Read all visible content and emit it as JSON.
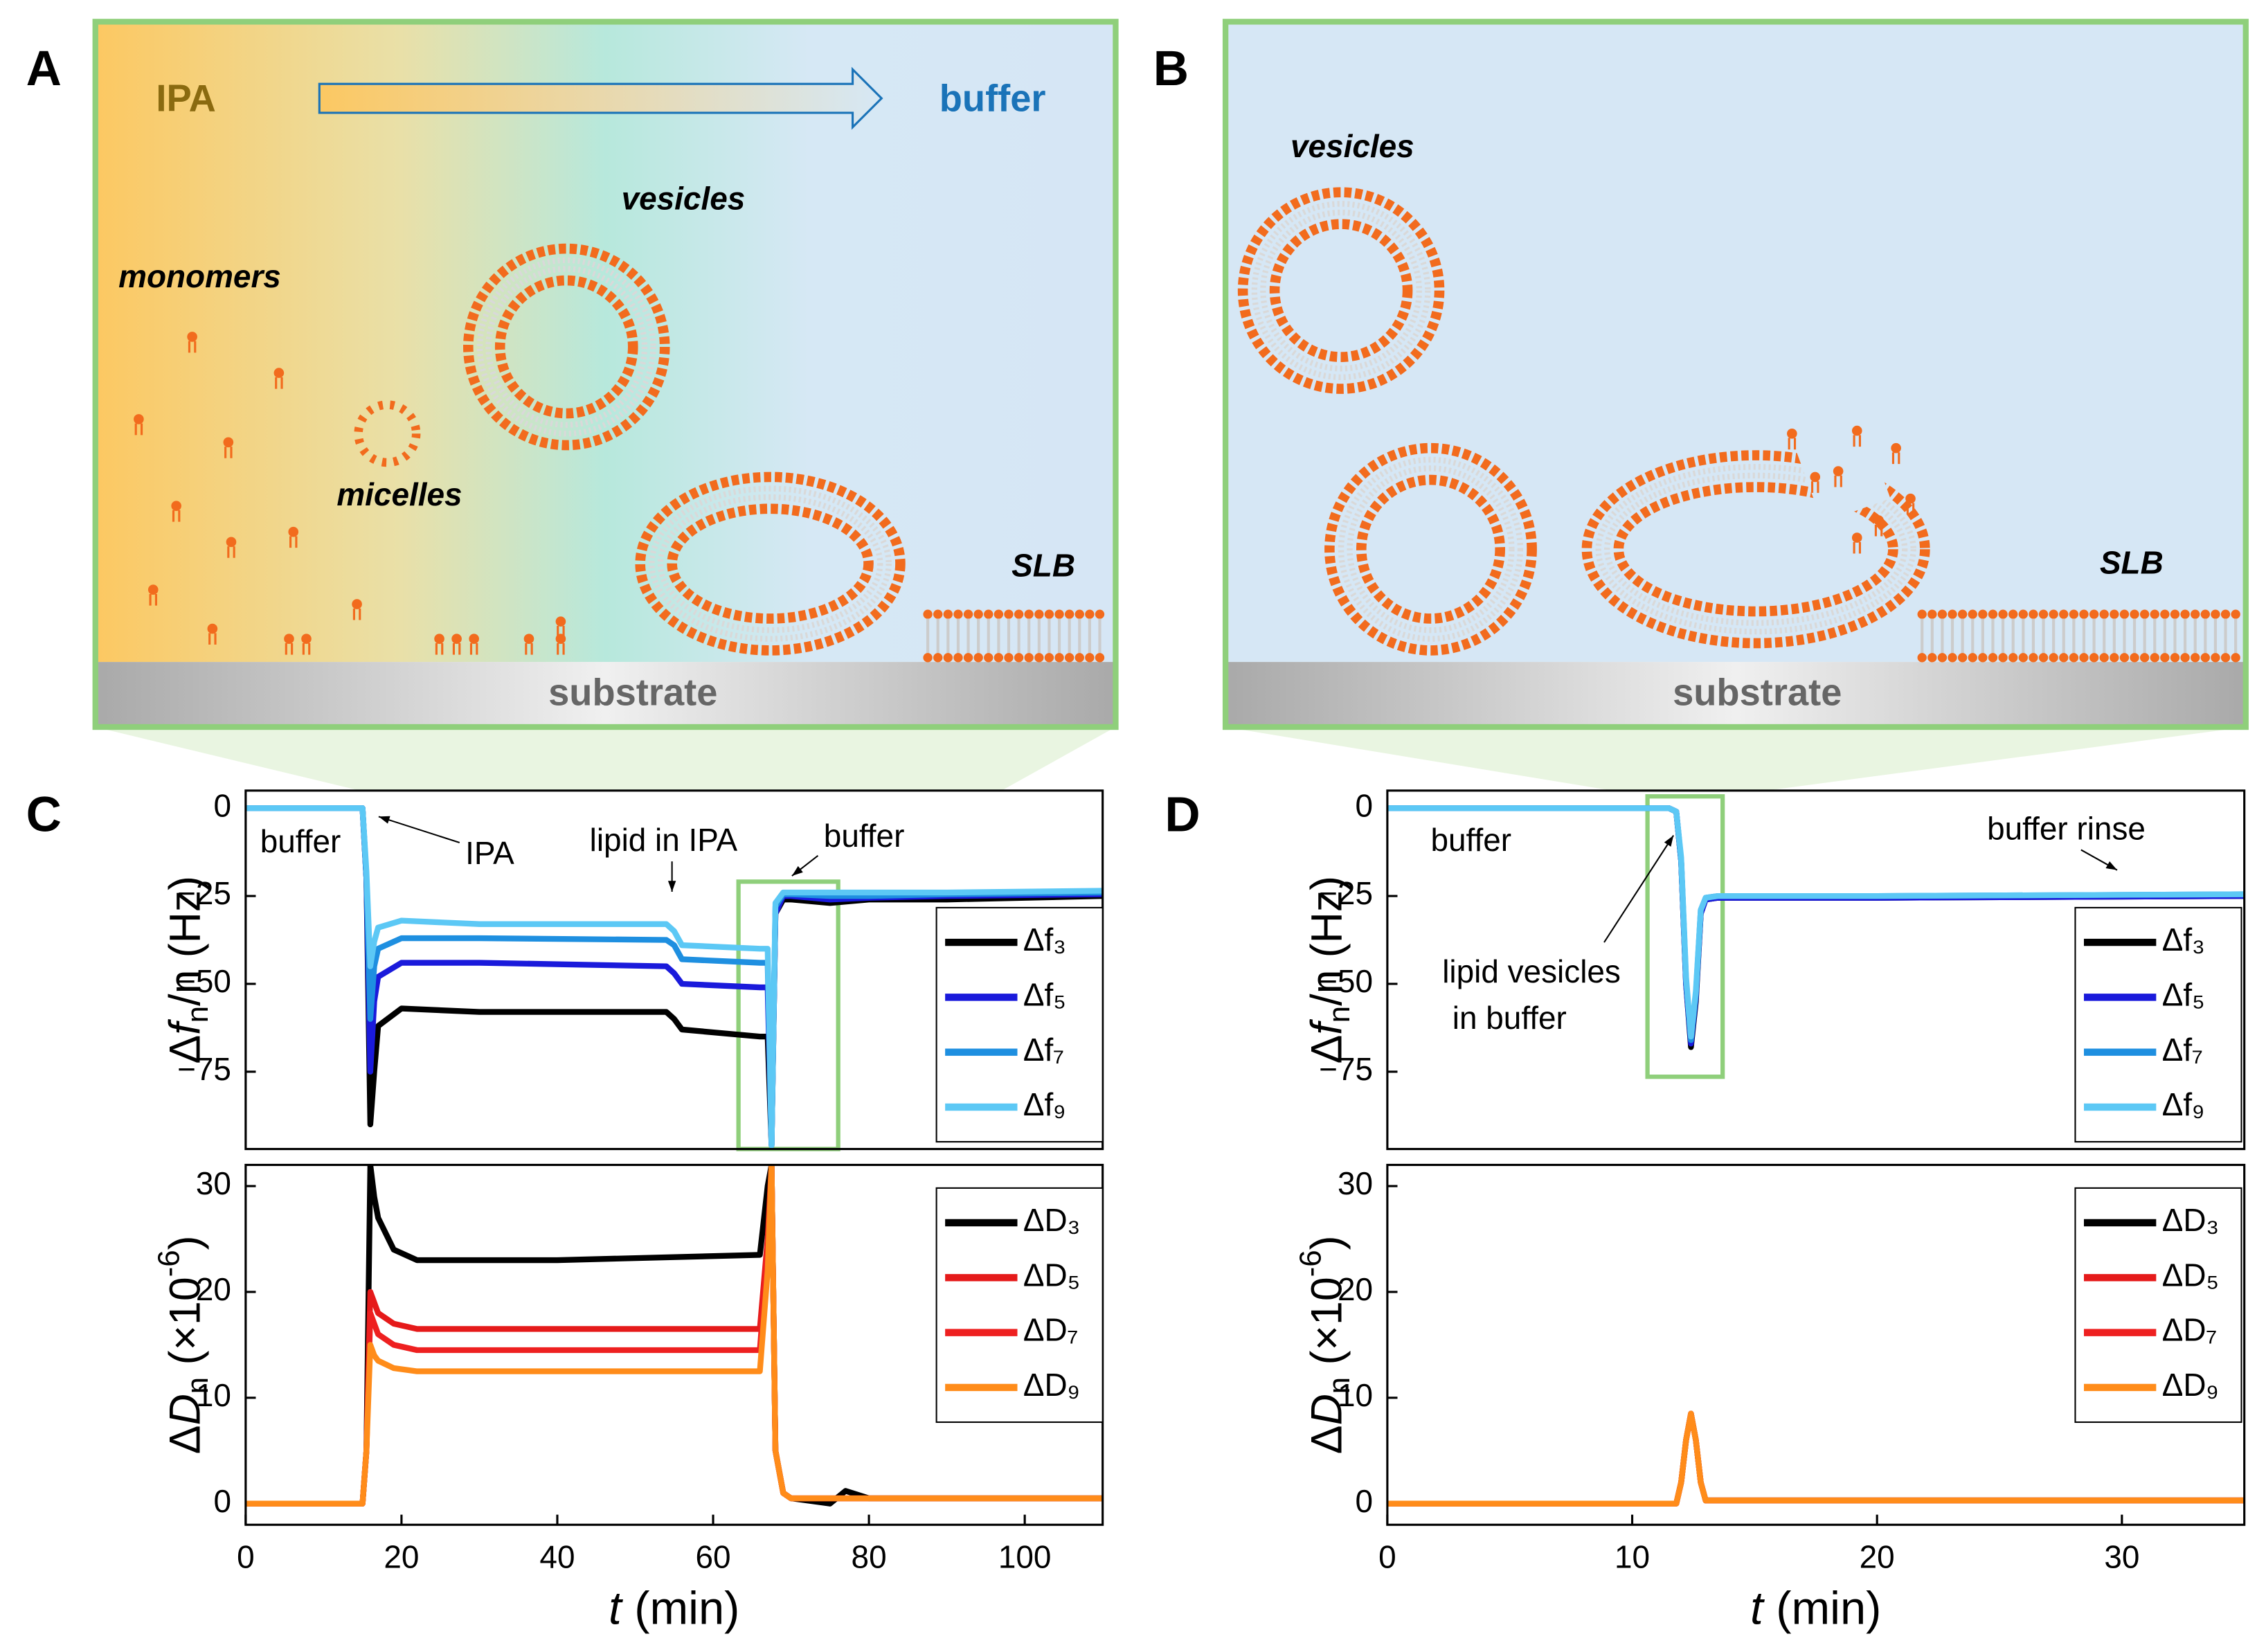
{
  "panel_labels": [
    "A",
    "B",
    "C",
    "D"
  ],
  "panel_a": {
    "left": "IPA",
    "right": "buffer",
    "vesicles": "vesicles",
    "monomers": "monomers",
    "micelles": "micelles",
    "slb": "SLB",
    "substrate": "substrate"
  },
  "panel_b": {
    "vesicles": "vesicles",
    "slb": "SLB",
    "substrate": "substrate"
  },
  "chart_data": [
    {
      "type": "line",
      "ylabel": {
        "pre": "Δ",
        "var": "f",
        "sub": "n",
        "post": "/n (Hz)"
      },
      "xlim": [
        0,
        110
      ],
      "ylim": [
        -97,
        5
      ],
      "yticks": [
        0,
        {
          "value": -25,
          "label": "−25"
        },
        {
          "value": -50,
          "label": "−50"
        },
        {
          "value": -75,
          "label": "−75"
        }
      ],
      "annotations": [
        "buffer",
        "IPA",
        "lipid in IPA",
        "buffer"
      ],
      "x": [
        0,
        15,
        15.5,
        16,
        16.5,
        17,
        20,
        30,
        54,
        55,
        56,
        66,
        67,
        67.5,
        68,
        69,
        70,
        75,
        80,
        90,
        110
      ],
      "series": [
        {
          "name": "Δf₃",
          "color": "#000000",
          "values": [
            0,
            0,
            -20,
            -90,
            -75,
            -62,
            -57,
            -58,
            -58,
            -60,
            -63,
            -65,
            -65,
            -96,
            -30,
            -26,
            -26,
            -27,
            -26,
            -26,
            -25
          ]
        },
        {
          "name": "Δf₅",
          "color": "#1a1adb",
          "values": [
            0,
            0,
            -20,
            -75,
            -55,
            -48,
            -44,
            -44,
            -45,
            -47,
            -50,
            -51,
            -51,
            -96,
            -30,
            -25,
            -25,
            -26,
            -25.5,
            -25,
            -24.5
          ]
        },
        {
          "name": "Δf₇",
          "color": "#1e8fe0",
          "values": [
            0,
            0,
            -20,
            -60,
            -45,
            -40,
            -37,
            -37,
            -37.5,
            -39,
            -43,
            -44,
            -44,
            -96,
            -28,
            -24.5,
            -24.5,
            -25,
            -25,
            -24.5,
            -24
          ]
        },
        {
          "name": "Δf₉",
          "color": "#5cc8f5",
          "values": [
            0,
            0,
            -18,
            -45,
            -38,
            -34,
            -32,
            -33,
            -33,
            -35,
            -39,
            -40,
            -40,
            -96,
            -27,
            -24,
            -24,
            -24,
            -24,
            -24,
            -23.5
          ]
        }
      ]
    },
    {
      "type": "line",
      "ylabel": {
        "pre": "Δ",
        "var": "D",
        "sub": "n",
        "post": " (×10",
        "sup": "-6",
        "end": ")"
      },
      "xlabel": {
        "var": "t",
        "post": " (min)"
      },
      "xlim": [
        0,
        110
      ],
      "ylim": [
        -2,
        32
      ],
      "xticks": [
        0,
        20,
        40,
        60,
        80,
        100
      ],
      "yticks": [
        0,
        10,
        20,
        30
      ],
      "x": [
        0,
        15,
        15.5,
        16,
        16.5,
        17,
        19,
        22,
        40,
        66,
        67,
        67.5,
        68,
        69,
        70,
        75,
        77,
        80,
        110
      ],
      "series": [
        {
          "name": "ΔD₃",
          "color": "#000000",
          "values": [
            0,
            0,
            5,
            32,
            29,
            27,
            24,
            23,
            23,
            23.5,
            30,
            32,
            5,
            1,
            0.5,
            0,
            1.2,
            0.5,
            0.5
          ]
        },
        {
          "name": "ΔD₅",
          "color": "#e51a1a",
          "values": [
            0,
            0,
            5,
            20,
            19,
            18,
            17,
            16.5,
            16.5,
            16.5,
            25,
            32,
            5,
            1,
            0.5,
            0.5,
            0.5,
            0.5,
            0.5
          ]
        },
        {
          "name": "ΔD₇",
          "color": "#ee2020",
          "values": [
            0,
            0,
            5,
            18,
            17,
            16,
            15,
            14.5,
            14.5,
            14.5,
            24,
            32,
            5,
            1,
            0.5,
            0.5,
            0.5,
            0.5,
            0.5
          ]
        },
        {
          "name": "ΔD₉",
          "color": "#ff8c1a",
          "values": [
            0,
            0,
            5,
            15,
            14,
            13.5,
            12.8,
            12.5,
            12.5,
            12.5,
            22,
            32,
            5,
            1,
            0.5,
            0.5,
            0.5,
            0.5,
            0.5
          ]
        }
      ]
    },
    {
      "type": "line",
      "ylabel": {
        "pre": "Δ",
        "var": "f",
        "sub": "n",
        "post": "/n (Hz)"
      },
      "xlim": [
        0,
        35
      ],
      "ylim": [
        -97,
        5
      ],
      "yticks": [
        0,
        {
          "value": -25,
          "label": "−25"
        },
        {
          "value": -50,
          "label": "−50"
        },
        {
          "value": -75,
          "label": "−75"
        }
      ],
      "annotations": [
        "buffer",
        "buffer rinse",
        "lipid vesicles",
        "in buffer"
      ],
      "x": [
        0,
        11.5,
        11.8,
        12,
        12.2,
        12.4,
        12.6,
        12.8,
        13,
        13.5,
        20,
        35
      ],
      "series": [
        {
          "name": "Δf₃",
          "color": "#000000",
          "values": [
            0,
            0,
            -1,
            -15,
            -50,
            -68,
            -55,
            -30,
            -26,
            -25.5,
            -25.5,
            -25
          ]
        },
        {
          "name": "Δf₅",
          "color": "#1a1adb",
          "values": [
            0,
            0,
            -1,
            -15,
            -50,
            -67,
            -54,
            -30,
            -26,
            -25.5,
            -25.5,
            -25
          ]
        },
        {
          "name": "Δf₇",
          "color": "#1e8fe0",
          "values": [
            0,
            0,
            -1,
            -15,
            -49,
            -66,
            -53,
            -29,
            -25.5,
            -25,
            -25,
            -24.5
          ]
        },
        {
          "name": "Δf₉",
          "color": "#5cc8f5",
          "values": [
            0,
            0,
            -1,
            -14,
            -48,
            -65,
            -52,
            -29,
            -25.5,
            -25,
            -25,
            -24.5
          ]
        }
      ]
    },
    {
      "type": "line",
      "ylabel": {
        "pre": "Δ",
        "var": "D",
        "sub": "n",
        "post": " (×10",
        "sup": "-6",
        "end": ")"
      },
      "xlabel": {
        "var": "t",
        "post": " (min)"
      },
      "xlim": [
        0,
        35
      ],
      "ylim": [
        -2,
        32
      ],
      "xticks": [
        0,
        10,
        20,
        30
      ],
      "yticks": [
        0,
        10,
        20,
        30
      ],
      "x": [
        0,
        11.8,
        12,
        12.2,
        12.4,
        12.6,
        12.8,
        13,
        20,
        35
      ],
      "series": [
        {
          "name": "ΔD₃",
          "color": "#000000",
          "values": [
            0,
            0,
            2,
            6,
            8.5,
            6,
            2,
            0.3,
            0.3,
            0.3
          ]
        },
        {
          "name": "ΔD₅",
          "color": "#e51a1a",
          "values": [
            0,
            0,
            2,
            6,
            8.5,
            6,
            2,
            0.3,
            0.3,
            0.3
          ]
        },
        {
          "name": "ΔD₇",
          "color": "#ee2020",
          "values": [
            0,
            0,
            2,
            6,
            8.5,
            6,
            2,
            0.3,
            0.3,
            0.3
          ]
        },
        {
          "name": "ΔD₉",
          "color": "#ff8c1a",
          "values": [
            0,
            0,
            2,
            6,
            8.5,
            6,
            2,
            0.3,
            0.3,
            0.3
          ]
        }
      ]
    }
  ]
}
